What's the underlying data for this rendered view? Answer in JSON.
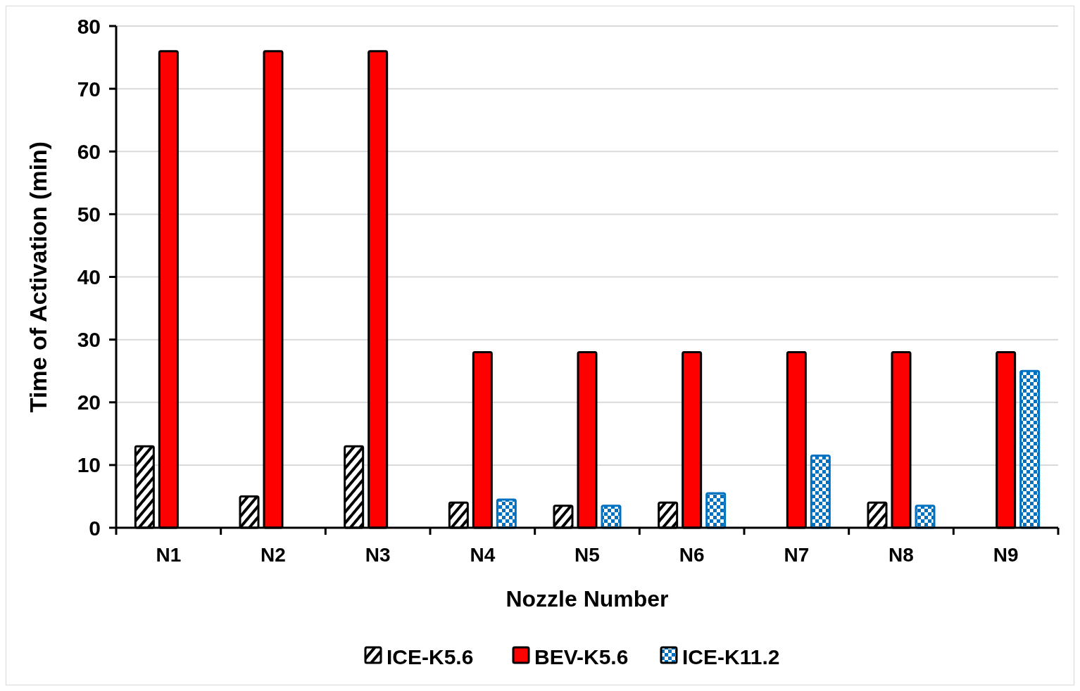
{
  "chart_data": {
    "type": "bar",
    "xlabel": "Nozzle Number",
    "ylabel": "Time of Activation (min)",
    "categories": [
      "N1",
      "N2",
      "N3",
      "N4",
      "N5",
      "N6",
      "N7",
      "N8",
      "N9"
    ],
    "series": [
      {
        "name": "ICE-K5.6",
        "color": "#000000",
        "values": [
          13,
          5,
          13,
          4,
          3.5,
          4,
          null,
          4,
          null
        ]
      },
      {
        "name": "BEV-K5.6",
        "color": "#ff0000",
        "values": [
          76,
          76,
          76,
          28,
          28,
          28,
          28,
          28,
          28
        ]
      },
      {
        "name": "ICE-K11.2",
        "color": "#0070c0",
        "values": [
          null,
          null,
          null,
          4.5,
          3.5,
          5.5,
          11.5,
          3.5,
          25
        ]
      }
    ],
    "ylim": [
      0,
      80
    ],
    "yticks": [
      0,
      10,
      20,
      30,
      40,
      50,
      60,
      70,
      80
    ],
    "grid": "y",
    "legend": "bottom"
  }
}
